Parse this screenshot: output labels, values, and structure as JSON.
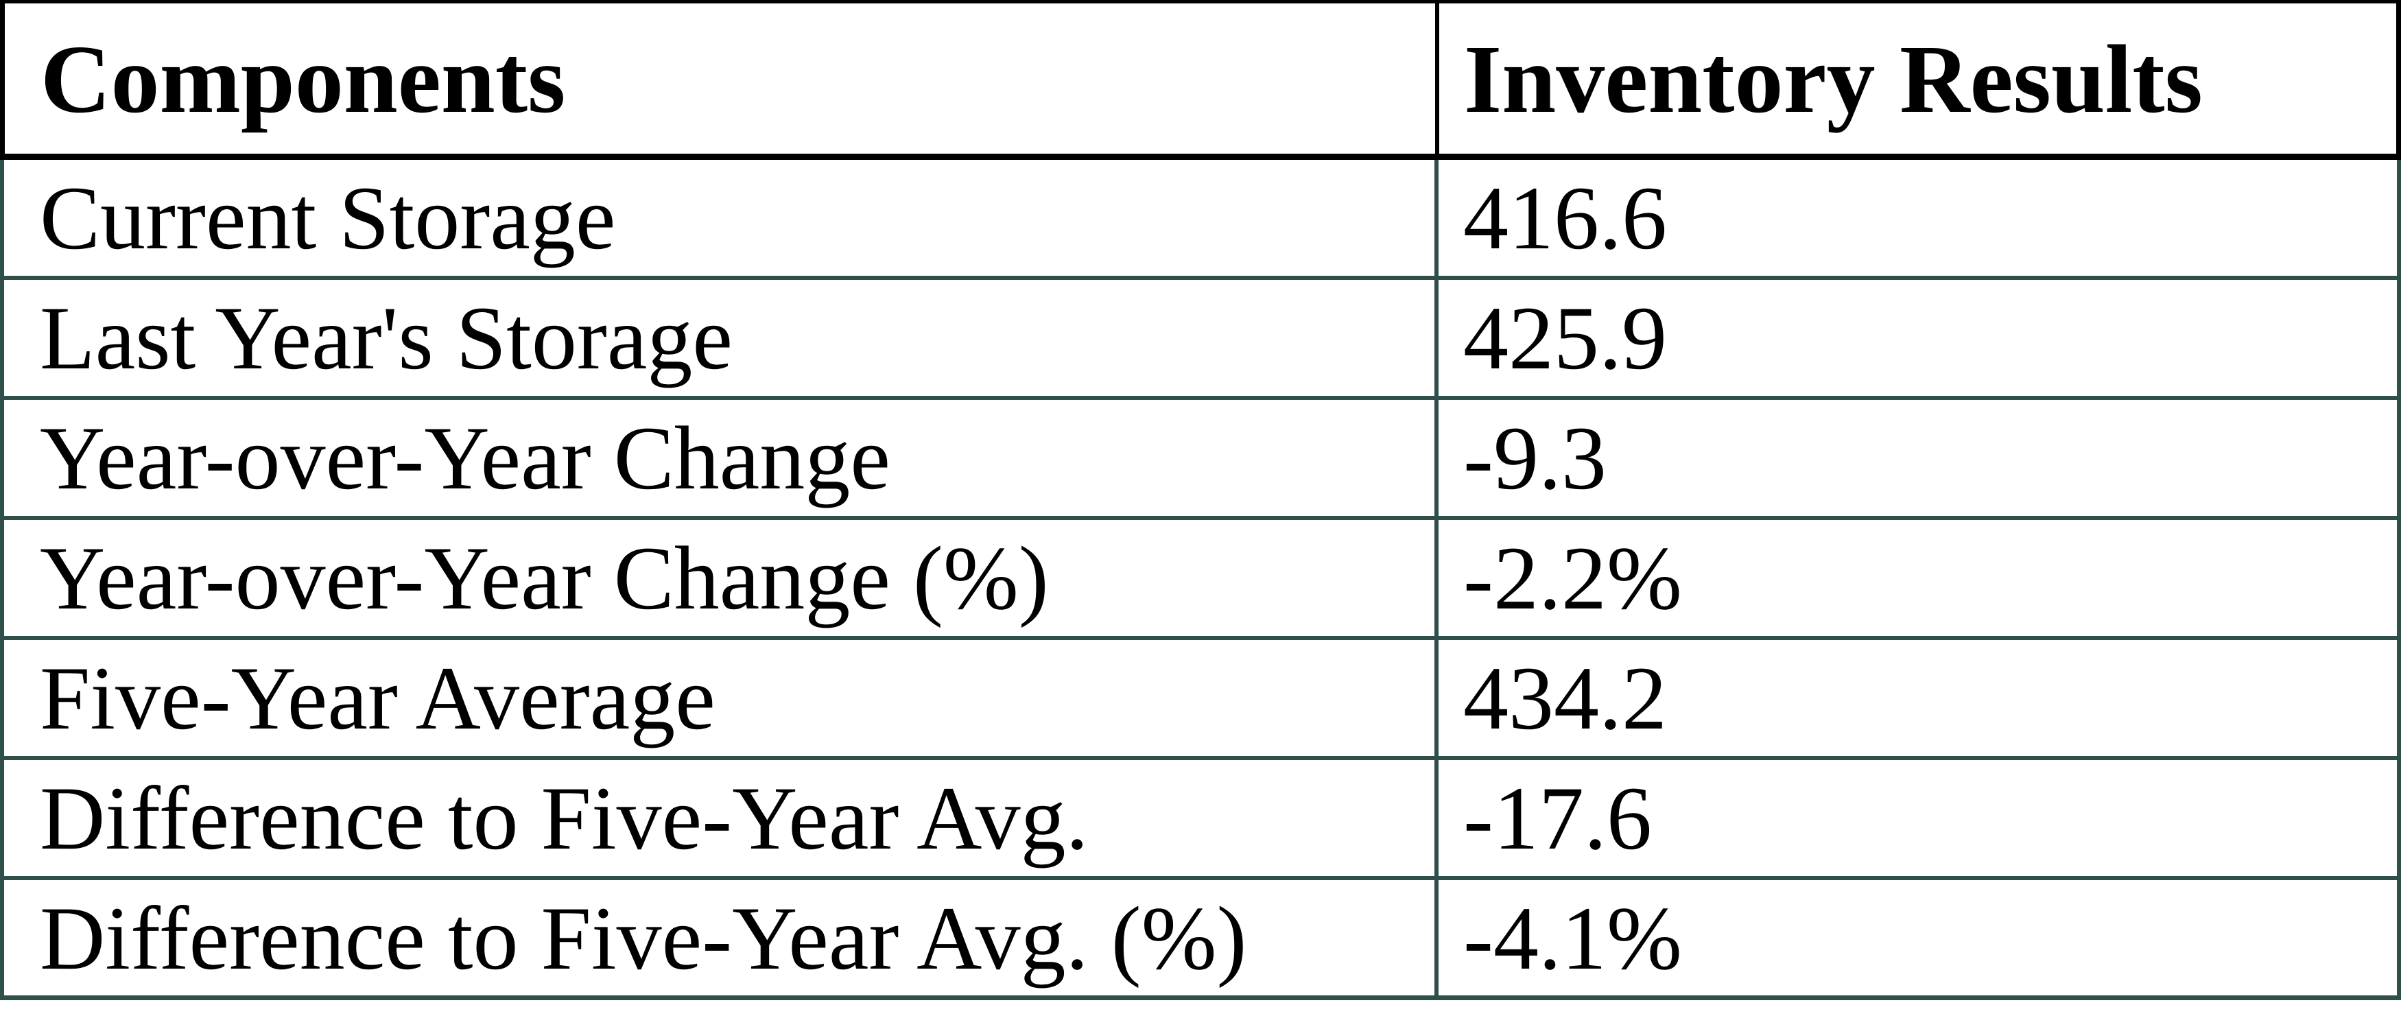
{
  "table": {
    "columns": [
      "Components",
      "Inventory Results"
    ],
    "rows": [
      {
        "component": "Current Storage",
        "value": "416.6"
      },
      {
        "component": "Last Year's Storage",
        "value": "425.9"
      },
      {
        "component": "Year-over-Year Change",
        "value": "-9.3"
      },
      {
        "component": "Year-over-Year Change (%)",
        "value": "-2.2%"
      },
      {
        "component": "Five-Year Average",
        "value": "434.2"
      },
      {
        "component": "Difference to Five-Year Avg.",
        "value": "-17.6"
      },
      {
        "component": "Difference to Five-Year Avg. (%)",
        "value": "-4.1%"
      }
    ]
  },
  "colors": {
    "background": "#FFFFFF",
    "text": "#000000",
    "header_border": "#000000",
    "body_border": "#2F4F4B"
  }
}
